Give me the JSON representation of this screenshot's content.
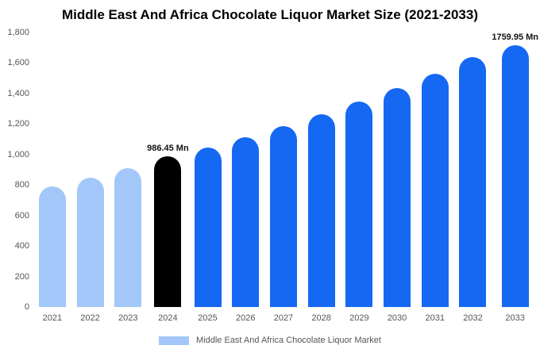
{
  "chart_data": {
    "type": "bar",
    "title": "Middle East And Africa Chocolate Liquor Market Size (2021-2033)",
    "legend": "Middle East And Africa Chocolate Liquor Market",
    "xlabel": "",
    "ylabel": "",
    "ylim": [
      0,
      1800
    ],
    "grid": false,
    "legend_position": "bottom",
    "yticks": [
      {
        "value": 0,
        "label": "0"
      },
      {
        "value": 200,
        "label": "200"
      },
      {
        "value": 400,
        "label": "400"
      },
      {
        "value": 600,
        "label": "600"
      },
      {
        "value": 800,
        "label": "800"
      },
      {
        "value": 1000,
        "label": "1,000"
      },
      {
        "value": 1200,
        "label": "1,200"
      },
      {
        "value": 1400,
        "label": "1,400"
      },
      {
        "value": 1600,
        "label": "1,600"
      },
      {
        "value": 1800,
        "label": "1,800"
      }
    ],
    "categories": [
      "2021",
      "2022",
      "2023",
      "2024",
      "2025",
      "2026",
      "2027",
      "2028",
      "2029",
      "2030",
      "2031",
      "2032",
      "2033"
    ],
    "values": [
      790,
      850,
      910,
      986.45,
      1045,
      1115,
      1185,
      1262,
      1345,
      1435,
      1530,
      1640,
      1759.95
    ],
    "bar_roles": [
      "light",
      "light",
      "light",
      "highlight",
      "primary",
      "primary",
      "primary",
      "primary",
      "primary",
      "primary",
      "primary",
      "primary",
      "primary"
    ],
    "palette": {
      "light": "#a3c7f8",
      "primary": "#1568f2",
      "highlight": "#000000"
    },
    "data_labels": [
      {
        "index": 3,
        "text": "986.45 Mn"
      },
      {
        "index": 12,
        "text": "1759.95 Mn"
      }
    ]
  }
}
